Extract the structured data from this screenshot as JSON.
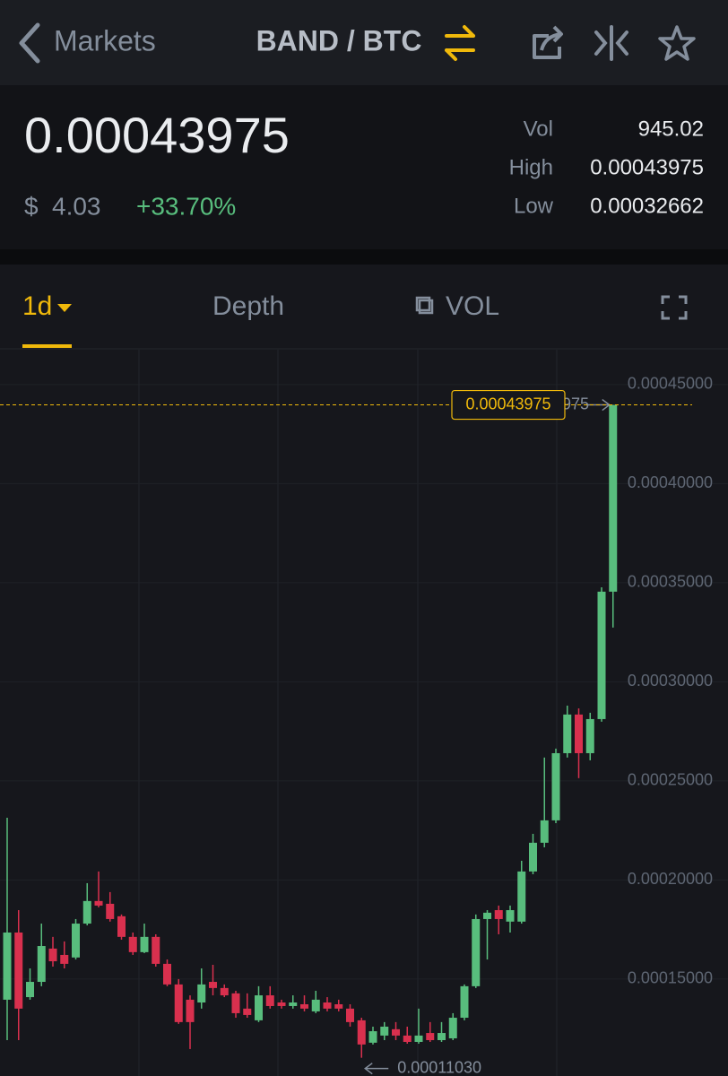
{
  "nav": {
    "back_label": "Markets",
    "pair": "BAND / BTC"
  },
  "ticker": {
    "price": "0.00043975",
    "usd_symbol": "$",
    "usd_value": "4.03",
    "change": "+33.70%",
    "stats": [
      {
        "label": "Vol",
        "value": "945.02"
      },
      {
        "label": "High",
        "value": "0.00043975"
      },
      {
        "label": "Low",
        "value": "0.00032662"
      }
    ]
  },
  "tabs": [
    "1d",
    "Depth",
    "VOL"
  ],
  "chart_data": {
    "type": "candlestick",
    "up_color": "#58bd7d",
    "down_color": "#d9304e",
    "ylim": [
      0.0001011,
      0.0004676
    ],
    "yticks": [
      {
        "value": 0.00045,
        "label": "0.00045000"
      },
      {
        "value": 0.0004,
        "label": "0.00040000"
      },
      {
        "value": 0.00035,
        "label": "0.00035000"
      },
      {
        "value": 0.0003,
        "label": "0.00030000"
      },
      {
        "value": 0.00025,
        "label": "0.00025000"
      },
      {
        "value": 0.0002,
        "label": "0.00020000"
      },
      {
        "value": 0.00015,
        "label": "0.00015000"
      }
    ],
    "open": [
      0.0001396,
      0.0001735,
      0.0001409,
      0.0001486,
      0.0001654,
      0.0001622,
      0.0001609,
      0.000178,
      0.0001894,
      0.000188,
      0.0001817,
      0.0001713,
      0.0001636,
      0.0001713,
      0.0001577,
      0.0001473,
      0.0001396,
      0.0001382,
      0.0001486,
      0.0001455,
      0.0001428,
      0.0001351,
      0.0001292,
      0.0001418,
      0.0001382,
      0.0001364,
      0.0001373,
      0.0001337,
      0.0001382,
      0.0001373,
      0.0001351,
      0.0001292,
      0.0001179,
      0.0001215,
      0.0001247,
      0.0001215,
      0.0001183,
      0.0001228,
      0.0001192,
      0.0001201,
      0.0001305,
      0.0001464,
      0.0001803,
      0.0001848,
      0.000179,
      0.000179,
      0.0002043,
      0.0002188,
      0.0002301,
      0.000264,
      0.0002835,
      0.000264,
      0.0002812,
      0.0003455
    ],
    "high": [
      0.0002314,
      0.0001848,
      0.0001554,
      0.000178,
      0.0001713,
      0.000169,
      0.0001803,
      0.0001984,
      0.0002043,
      0.0001939,
      0.0001826,
      0.0001735,
      0.000178,
      0.0001726,
      0.0001599,
      0.00015,
      0.0001418,
      0.0001554,
      0.0001572,
      0.0001473,
      0.0001441,
      0.0001428,
      0.0001464,
      0.0001464,
      0.0001396,
      0.0001418,
      0.0001418,
      0.0001441,
      0.0001409,
      0.0001396,
      0.0001373,
      0.0001305,
      0.000126,
      0.0001283,
      0.0001283,
      0.000126,
      0.0001351,
      0.0001283,
      0.0001283,
      0.0001328,
      0.0001473,
      0.0001826,
      0.0001848,
      0.0001871,
      0.0001871,
      0.0002097,
      0.0002233,
      0.0002618,
      0.0002663,
      0.000288,
      0.0002866,
      0.0002844,
      0.0003477,
      0.00043975
    ],
    "low": [
      0.0001192,
      0.0001192,
      0.0001396,
      0.0001464,
      0.0001563,
      0.0001554,
      0.0001599,
      0.0001771,
      0.0001862,
      0.000179,
      0.0001699,
      0.0001622,
      0.0001631,
      0.0001563,
      0.0001464,
      0.0001274,
      0.0001147,
      0.0001351,
      0.0001418,
      0.0001409,
      0.0001305,
      0.0001305,
      0.0001283,
      0.0001351,
      0.0001351,
      0.0001351,
      0.0001337,
      0.0001328,
      0.0001337,
      0.0001337,
      0.000126,
      0.0001103,
      0.000117,
      0.0001192,
      0.0001192,
      0.0001174,
      0.0001174,
      0.0001183,
      0.0001183,
      0.0001192,
      0.0001292,
      0.0001455,
      0.0001599,
      0.0001726,
      0.0001735,
      0.000178,
      0.0002029,
      0.0002165,
      0.0002287,
      0.0002618,
      0.0002514,
      0.0002604,
      0.0002799,
      0.0003274
    ],
    "close": [
      0.0001735,
      0.0001351,
      0.0001486,
      0.0001667,
      0.000159,
      0.0001577,
      0.000178,
      0.0001894,
      0.0001871,
      0.0001803,
      0.0001713,
      0.0001636,
      0.0001713,
      0.0001577,
      0.0001473,
      0.0001283,
      0.0001283,
      0.0001473,
      0.0001455,
      0.0001418,
      0.0001328,
      0.0001319,
      0.0001418,
      0.0001364,
      0.0001364,
      0.0001382,
      0.0001351,
      0.0001396,
      0.0001351,
      0.0001351,
      0.0001283,
      0.000117,
      0.0001237,
      0.000126,
      0.0001215,
      0.0001183,
      0.0001215,
      0.0001192,
      0.0001228,
      0.0001305,
      0.0001464,
      0.0001803,
      0.0001835,
      0.0001803,
      0.0001848,
      0.0002043,
      0.0002188,
      0.0002301,
      0.000264,
      0.0002835,
      0.000264,
      0.0002812,
      0.0003455,
      0.00043975
    ],
    "annotations": {
      "high_label": "0.00043975",
      "low_label": "0.00011030",
      "last_price_label": "0.00043975"
    }
  }
}
